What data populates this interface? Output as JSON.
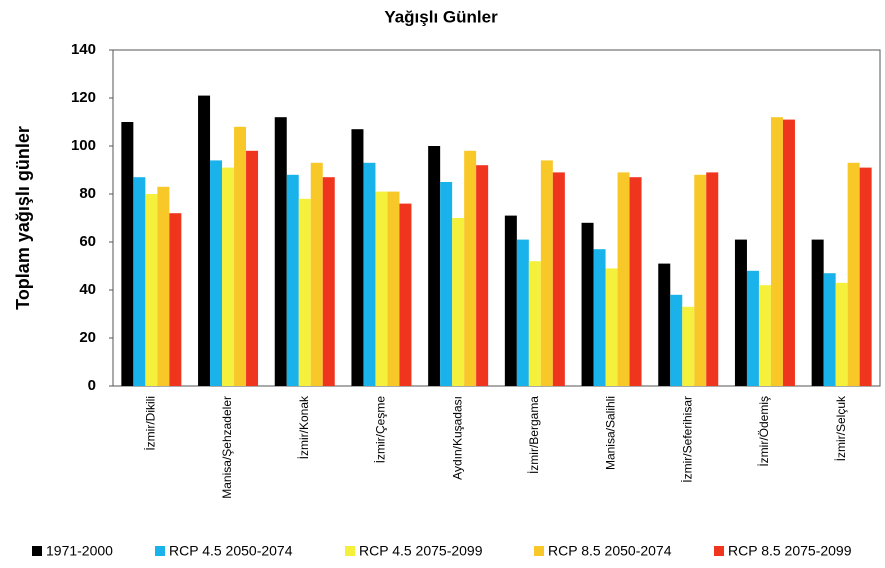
{
  "chart_data": {
    "type": "bar",
    "title": "Yağışlı Günler",
    "ylabel": "Toplam yağışlı günler",
    "categories": [
      "İzmir/Dikili",
      "Manisa/Şehzadeler",
      "İzmir/Konak",
      "İzmir/Çeşme",
      "Aydın/Kuşadası",
      "İzmir/Bergama",
      "Manisa/Salihli",
      "İzmir/Seferihisar",
      "İzmir/Ödemiş",
      "İzmir/Selçuk"
    ],
    "series": [
      {
        "name": "1971-2000",
        "color": "#000000",
        "values": [
          110,
          121,
          112,
          107,
          100,
          71,
          68,
          51,
          61,
          61
        ]
      },
      {
        "name": "RCP 4.5 2050-2074",
        "color": "#1ab2ea",
        "values": [
          87,
          94,
          88,
          93,
          85,
          61,
          57,
          38,
          48,
          47
        ]
      },
      {
        "name": "RCP 4.5 2075-2099",
        "color": "#f5f03c",
        "values": [
          80,
          91,
          78,
          81,
          70,
          52,
          49,
          33,
          42,
          43
        ]
      },
      {
        "name": "RCP 8.5 2050-2074",
        "color": "#f8c829",
        "values": [
          83,
          108,
          93,
          81,
          98,
          94,
          89,
          88,
          112,
          93
        ]
      },
      {
        "name": "RCP 8.5 2075-2099",
        "color": "#f0351e",
        "values": [
          72,
          98,
          87,
          76,
          92,
          89,
          87,
          89,
          111,
          91
        ]
      }
    ],
    "ylim": [
      0,
      140
    ],
    "yticks": [
      0,
      20,
      40,
      60,
      80,
      100,
      120,
      140
    ],
    "grid": false,
    "legend": "bottom"
  }
}
